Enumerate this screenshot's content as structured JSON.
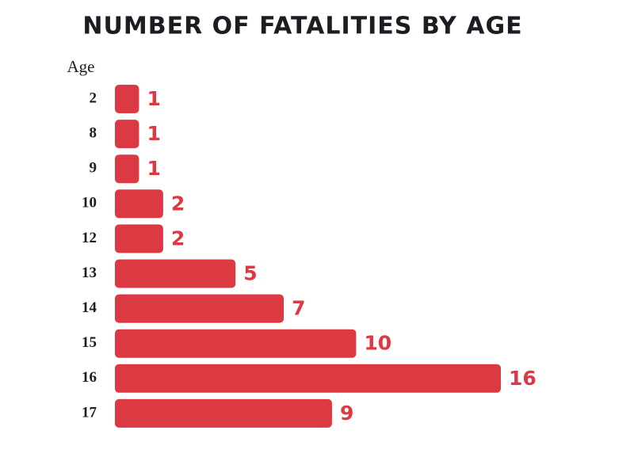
{
  "chart_data": {
    "type": "bar",
    "orientation": "horizontal",
    "title": "NUMBER OF FATALITIES BY AGE",
    "y_label": "Age",
    "categories": [
      "2",
      "8",
      "9",
      "10",
      "12",
      "13",
      "14",
      "15",
      "16",
      "17"
    ],
    "values": [
      1,
      1,
      1,
      2,
      2,
      5,
      7,
      10,
      16,
      9
    ],
    "color": "#db3a42"
  }
}
